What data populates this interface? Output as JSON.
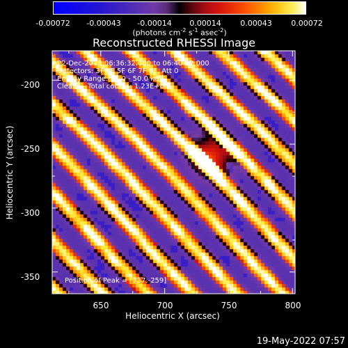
{
  "chart_data": {
    "type": "heatmap",
    "title": "Reconstructed RHESSI Image",
    "xlabel": "Heliocentric X (arcsec)",
    "ylabel": "Heliocentric Y (arcsec)",
    "xlim": [
      612,
      802
    ],
    "ylim": [
      -367,
      -177
    ],
    "x_ticks": [
      650,
      700,
      750,
      800
    ],
    "y_ticks": [
      -200,
      -250,
      -300,
      -350
    ],
    "colorbar": {
      "ticks": [
        "-0.00072",
        "-0.00043",
        "-0.00014",
        "0.00014",
        "0.00043",
        "0.00072"
      ],
      "units_pre": "(photons cm",
      "units_mid1": " s",
      "units_mid2": " asec",
      "units_post": ")",
      "exp1": "-2",
      "exp2": "-1",
      "exp3": "-2",
      "range": [
        -0.00072,
        0.00072
      ]
    },
    "annotations": [
      "22-Dec-2013 06:36:32.000 to 06:40:52.000",
      "Detectors: 3F 4F 5F 6F 7F 8F, Att 0",
      "Energy Range: 25.0 - 50.0 keV",
      "Clean     Total counts: 1.23E+04"
    ],
    "peak_label": "Position of Peak = [737,-259]",
    "peak": [
      737,
      -259
    ],
    "colors": {
      "negative": "#0000ff",
      "background": "#6a38a6",
      "zero": "#000000",
      "positive_mid": "#ff3000",
      "positive_high": "#ffffff"
    }
  },
  "timestamp": "19-May-2022 07:57"
}
